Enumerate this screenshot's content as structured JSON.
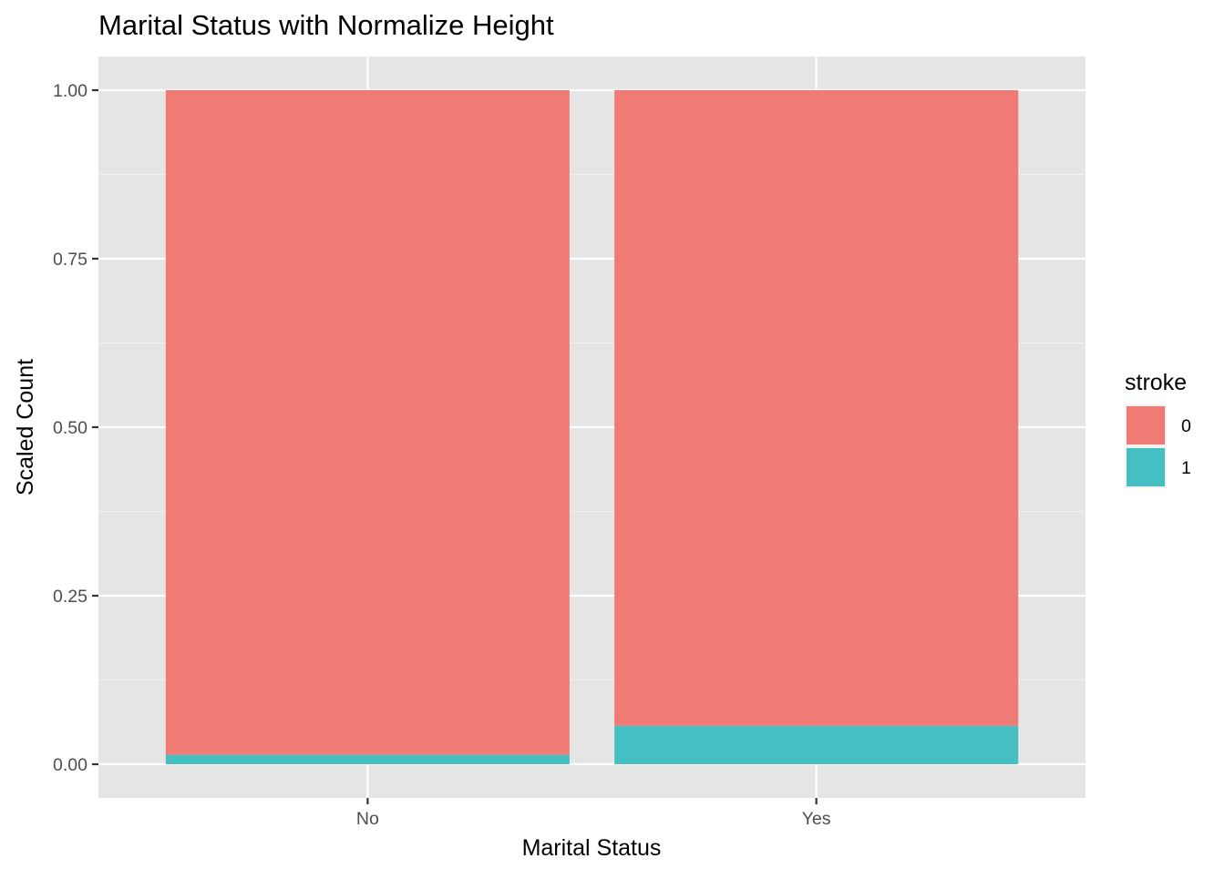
{
  "chart_data": {
    "type": "bar",
    "stacked": true,
    "normalized": true,
    "title": "Marital Status with Normalize Height",
    "xlabel": "Marital Status",
    "ylabel": "Scaled Count",
    "categories": [
      "No",
      "Yes"
    ],
    "series": [
      {
        "name": "0",
        "values": [
          0.986,
          0.943
        ],
        "color": "#F07B75"
      },
      {
        "name": "1",
        "values": [
          0.014,
          0.057
        ],
        "color": "#45BFC2"
      }
    ],
    "ylim": [
      -0.05,
      1.05
    ],
    "yticks": [
      0.0,
      0.25,
      0.5,
      0.75,
      1.0
    ],
    "ytick_labels": [
      "0.00",
      "0.25",
      "0.50",
      "0.75",
      "1.00"
    ],
    "grid": true,
    "legend": {
      "title": "stroke",
      "position": "right",
      "items": [
        "0",
        "1"
      ]
    }
  }
}
